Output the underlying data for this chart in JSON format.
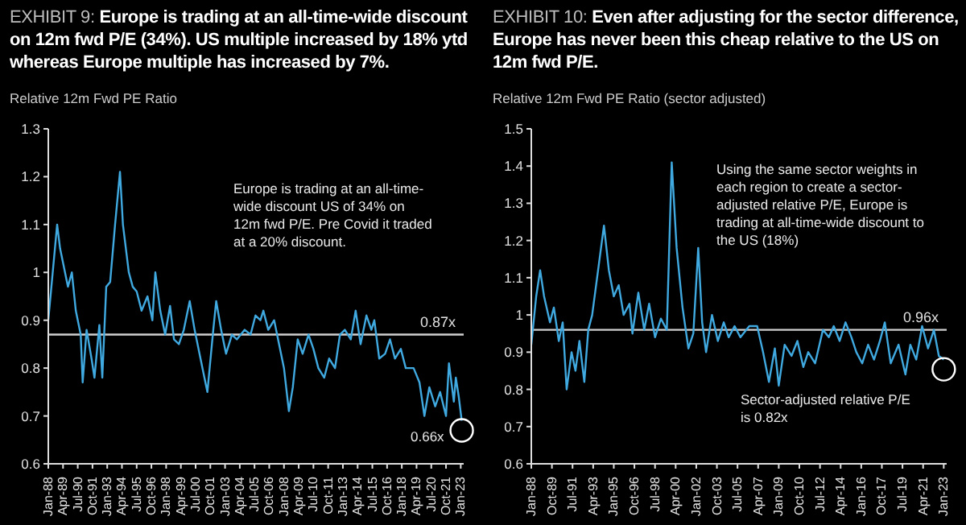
{
  "chart_data": [
    {
      "type": "line",
      "title": "EXHIBIT 9: Europe is trading at an all-time-wide discount on 12m fwd P/E (34%). US multiple increased by 18% ytd whereas Europe multiple has increased by 7%.",
      "subtitle": "Relative 12m Fwd PE Ratio",
      "x": [
        "1988-01",
        "1988-10",
        "1989-01",
        "1989-09",
        "1990-01",
        "1990-05",
        "1990-10",
        "1990-12",
        "1991-04",
        "1991-09",
        "1991-12",
        "1992-05",
        "1992-08",
        "1992-12",
        "1993-04",
        "1993-09",
        "1994-02",
        "1994-05",
        "1994-11",
        "1995-03",
        "1995-07",
        "1995-12",
        "1996-06",
        "1996-11",
        "1997-02",
        "1997-07",
        "1997-12",
        "1998-05",
        "1998-09",
        "1999-02",
        "1999-07",
        "2000-01",
        "2000-06",
        "2001-02",
        "2001-07",
        "2002-01",
        "2002-04",
        "2002-09",
        "2003-02",
        "2003-08",
        "2004-01",
        "2004-09",
        "2005-03",
        "2005-08",
        "2006-01",
        "2006-04",
        "2006-09",
        "2007-03",
        "2007-08",
        "2008-01",
        "2008-06",
        "2008-10",
        "2009-03",
        "2009-08",
        "2010-02",
        "2010-07",
        "2010-12",
        "2011-06",
        "2011-11",
        "2012-05",
        "2012-10",
        "2013-03",
        "2013-09",
        "2014-02",
        "2014-07",
        "2015-01",
        "2015-06",
        "2015-09",
        "2016-02",
        "2016-08",
        "2017-01",
        "2017-06",
        "2017-12",
        "2018-05",
        "2019-01",
        "2019-07",
        "2019-12",
        "2020-05",
        "2020-11",
        "2021-04",
        "2021-10",
        "2022-01",
        "2022-06",
        "2022-08",
        "2022-11",
        "2023-02"
      ],
      "series": [
        {
          "color": "#3fa9e0",
          "values": [
            0.9,
            1.1,
            1.05,
            0.97,
            1.0,
            0.92,
            0.87,
            0.77,
            0.88,
            0.82,
            0.78,
            0.89,
            0.78,
            0.97,
            0.98,
            1.1,
            1.21,
            1.1,
            1.0,
            0.97,
            0.96,
            0.92,
            0.95,
            0.9,
            1.0,
            0.92,
            0.87,
            0.93,
            0.86,
            0.85,
            0.88,
            0.94,
            0.88,
            0.8,
            0.75,
            0.88,
            0.94,
            0.88,
            0.83,
            0.87,
            0.86,
            0.88,
            0.87,
            0.91,
            0.9,
            0.92,
            0.88,
            0.9,
            0.85,
            0.8,
            0.71,
            0.76,
            0.86,
            0.83,
            0.87,
            0.84,
            0.8,
            0.78,
            0.82,
            0.8,
            0.87,
            0.88,
            0.86,
            0.92,
            0.85,
            0.91,
            0.88,
            0.9,
            0.82,
            0.83,
            0.86,
            0.82,
            0.84,
            0.8,
            0.8,
            0.77,
            0.7,
            0.76,
            0.72,
            0.75,
            0.7,
            0.81,
            0.73,
            0.78,
            0.74,
            0.69
          ]
        }
      ],
      "xlim": [
        "1988-01",
        "2023-04"
      ],
      "ylim": [
        0.6,
        1.3
      ],
      "yticks": [
        0.6,
        0.7,
        0.8,
        0.9,
        1,
        1.1,
        1.2,
        1.3
      ],
      "xticks": [
        {
          "value": "1988-01",
          "label": "Jan-88"
        },
        {
          "value": "1989-04",
          "label": "Apr-89"
        },
        {
          "value": "1990-07",
          "label": "Jul-90"
        },
        {
          "value": "1991-10",
          "label": "Oct-91"
        },
        {
          "value": "1993-01",
          "label": "Jan-93"
        },
        {
          "value": "1994-04",
          "label": "Apr-94"
        },
        {
          "value": "1995-07",
          "label": "Jul-95"
        },
        {
          "value": "1996-10",
          "label": "Oct-96"
        },
        {
          "value": "1998-01",
          "label": "Jan-98"
        },
        {
          "value": "1999-04",
          "label": "Apr-99"
        },
        {
          "value": "2000-07",
          "label": "Jul-00"
        },
        {
          "value": "2001-10",
          "label": "Oct-01"
        },
        {
          "value": "2003-01",
          "label": "Jan-03"
        },
        {
          "value": "2004-04",
          "label": "Apr-04"
        },
        {
          "value": "2005-07",
          "label": "Jul-05"
        },
        {
          "value": "2006-10",
          "label": "Oct-06"
        },
        {
          "value": "2008-01",
          "label": "Jan-08"
        },
        {
          "value": "2009-04",
          "label": "Apr-09"
        },
        {
          "value": "2010-07",
          "label": "Jul-10"
        },
        {
          "value": "2011-10",
          "label": "Oct-11"
        },
        {
          "value": "2013-01",
          "label": "Jan-13"
        },
        {
          "value": "2014-04",
          "label": "Apr-14"
        },
        {
          "value": "2015-07",
          "label": "Jul-15"
        },
        {
          "value": "2016-10",
          "label": "Oct-16"
        },
        {
          "value": "2018-01",
          "label": "Jan-18"
        },
        {
          "value": "2019-04",
          "label": "Apr-19"
        },
        {
          "value": "2020-07",
          "label": "Jul-20"
        },
        {
          "value": "2021-10",
          "label": "Oct-21"
        },
        {
          "value": "2023-01",
          "label": "Jan-23"
        }
      ],
      "ref_lines": [
        {
          "axis": "y",
          "value": 0.87,
          "label": "0.87x",
          "color": "#d0d0d0"
        }
      ],
      "annotations": [
        "Europe is trading at an all-time-wide discount US of 34% on 12m fwd P/E. Pre Covid it traded at a 20% discount.",
        "0.66x"
      ],
      "grid": false,
      "legend": false,
      "marker": "none"
    },
    {
      "type": "line",
      "title": "EXHIBIT 10: Even after adjusting for the sector difference, Europe has never been this cheap relative to the US on 12m fwd P/E.",
      "subtitle": "Relative 12m Fwd PE Ratio (sector adjusted)",
      "x": [
        "1988-01",
        "1988-06",
        "1988-10",
        "1989-02",
        "1989-08",
        "1989-12",
        "1990-05",
        "1990-09",
        "1991-01",
        "1991-06",
        "1991-10",
        "1992-02",
        "1992-07",
        "1992-11",
        "1993-03",
        "1993-09",
        "1994-03",
        "1994-08",
        "1995-01",
        "1995-06",
        "1995-11",
        "1996-05",
        "1996-08",
        "1997-02",
        "1997-08",
        "1998-01",
        "1998-07",
        "1999-01",
        "1999-07",
        "1999-12",
        "2000-05",
        "2000-11",
        "2001-05",
        "2001-10",
        "2002-03",
        "2002-07",
        "2002-11",
        "2003-05",
        "2003-11",
        "2004-05",
        "2004-10",
        "2005-04",
        "2005-10",
        "2006-07",
        "2007-03",
        "2007-09",
        "2008-03",
        "2008-09",
        "2009-01",
        "2009-07",
        "2010-02",
        "2010-08",
        "2011-02",
        "2011-07",
        "2012-02",
        "2012-10",
        "2013-04",
        "2013-09",
        "2014-03",
        "2014-09",
        "2015-03",
        "2015-08",
        "2016-02",
        "2016-08",
        "2017-02",
        "2017-08",
        "2018-01",
        "2018-07",
        "2019-03",
        "2019-10",
        "2020-03",
        "2020-09",
        "2021-03",
        "2021-09",
        "2022-03",
        "2022-08",
        "2023-01"
      ],
      "series": [
        {
          "color": "#3fa9e0",
          "values": [
            0.92,
            1.05,
            1.12,
            1.05,
            0.98,
            1.02,
            0.93,
            0.98,
            0.8,
            0.9,
            0.85,
            0.93,
            0.82,
            0.96,
            1.0,
            1.12,
            1.24,
            1.12,
            1.05,
            1.08,
            1.0,
            1.03,
            0.95,
            1.06,
            0.96,
            1.03,
            0.94,
            0.99,
            0.96,
            1.41,
            1.18,
            1.02,
            0.91,
            0.95,
            1.18,
            0.98,
            0.9,
            1.0,
            0.93,
            0.98,
            0.94,
            0.97,
            0.94,
            0.97,
            0.97,
            0.9,
            0.82,
            0.91,
            0.81,
            0.92,
            0.89,
            0.93,
            0.86,
            0.9,
            0.87,
            0.96,
            0.94,
            0.97,
            0.93,
            0.98,
            0.94,
            0.9,
            0.87,
            0.92,
            0.88,
            0.93,
            0.98,
            0.87,
            0.92,
            0.84,
            0.92,
            0.88,
            0.97,
            0.91,
            0.96,
            0.89,
            0.88
          ]
        }
      ],
      "xlim": [
        "1988-01",
        "2023-04"
      ],
      "ylim": [
        0.6,
        1.5
      ],
      "yticks": [
        0.6,
        0.7,
        0.8,
        0.9,
        1,
        1.1,
        1.2,
        1.3,
        1.4,
        1.5
      ],
      "xticks": [
        {
          "value": "1988-01",
          "label": "Jan-88"
        },
        {
          "value": "1989-10",
          "label": "Oct-89"
        },
        {
          "value": "1991-07",
          "label": "Jul-91"
        },
        {
          "value": "1993-04",
          "label": "Apr-93"
        },
        {
          "value": "1995-01",
          "label": "Jan-95"
        },
        {
          "value": "1996-10",
          "label": "Oct-96"
        },
        {
          "value": "1998-07",
          "label": "Jul-98"
        },
        {
          "value": "2000-04",
          "label": "Apr-00"
        },
        {
          "value": "2002-01",
          "label": "Jan-02"
        },
        {
          "value": "2003-10",
          "label": "Oct-03"
        },
        {
          "value": "2005-07",
          "label": "Jul-05"
        },
        {
          "value": "2007-04",
          "label": "Apr-07"
        },
        {
          "value": "2009-01",
          "label": "Jan-09"
        },
        {
          "value": "2010-10",
          "label": "Oct-10"
        },
        {
          "value": "2012-07",
          "label": "Jul-12"
        },
        {
          "value": "2014-04",
          "label": "Apr-14"
        },
        {
          "value": "2016-01",
          "label": "Jan-16"
        },
        {
          "value": "2017-10",
          "label": "Oct-17"
        },
        {
          "value": "2019-07",
          "label": "Jul-19"
        },
        {
          "value": "2021-04",
          "label": "Apr-21"
        },
        {
          "value": "2023-01",
          "label": "Jan-23"
        }
      ],
      "ref_lines": [
        {
          "axis": "y",
          "value": 0.96,
          "label": "0.96x",
          "color": "#d0d0d0"
        }
      ],
      "annotations": [
        "Using the same sector weights in each region to create a sector-adjusted relative P/E, Europe is trading at all-time-wide discount to the US (18%)",
        "Sector-adjusted relative P/E is 0.82x"
      ],
      "grid": false,
      "legend": false,
      "marker": "none"
    }
  ]
}
